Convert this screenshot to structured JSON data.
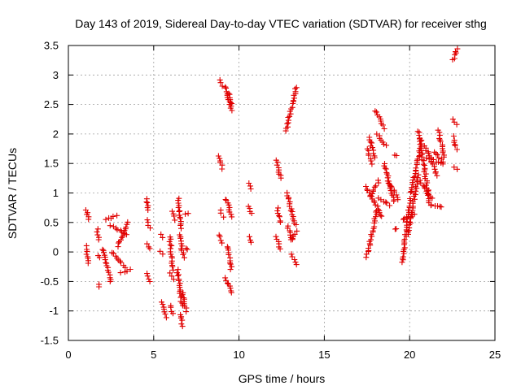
{
  "chart_data": {
    "type": "scatter",
    "title": "Day 143 of 2019, Sidereal Day-to-day VTEC variation (SDTVAR) for receiver sthg",
    "xlabel": "GPS time / hours",
    "ylabel": "SDTVAR / TECUs",
    "xlim": [
      0,
      25
    ],
    "ylim": [
      -1.5,
      3.5
    ],
    "xticks": [
      0,
      5,
      10,
      15,
      20,
      25
    ],
    "yticks": [
      -1.5,
      -1,
      -0.5,
      0,
      0.5,
      1,
      1.5,
      2,
      2.5,
      3,
      3.5
    ],
    "grid": true,
    "marker": "+",
    "color": "#e00000",
    "segments": [
      {
        "x": [
          1.05,
          1.15
        ],
        "y": [
          0.1,
          -0.2
        ]
      },
      {
        "x": [
          1.05,
          1.2
        ],
        "y": [
          0.72,
          0.55
        ]
      },
      {
        "x": [
          1.75,
          1.8
        ],
        "y": [
          -0.58,
          -0.55
        ]
      },
      {
        "x": [
          1.7,
          1.75
        ],
        "y": [
          0.38,
          0.2
        ]
      },
      {
        "x": [
          1.75,
          1.8
        ],
        "y": [
          -0.05,
          -0.1
        ]
      },
      {
        "x": [
          2.0,
          2.5
        ],
        "y": [
          0.05,
          -0.5
        ]
      },
      {
        "x": [
          2.2,
          2.8
        ],
        "y": [
          0.55,
          0.62
        ]
      },
      {
        "x": [
          2.5,
          3.4
        ],
        "y": [
          0.45,
          0.3
        ]
      },
      {
        "x": [
          2.6,
          3.3
        ],
        "y": [
          0.0,
          -0.25
        ]
      },
      {
        "x": [
          2.9,
          3.5
        ],
        "y": [
          0.1,
          0.5
        ]
      },
      {
        "x": [
          3.1,
          3.6
        ],
        "y": [
          -0.35,
          -0.3
        ]
      },
      {
        "x": [
          4.6,
          4.7
        ],
        "y": [
          0.9,
          0.7
        ]
      },
      {
        "x": [
          4.6,
          4.75
        ],
        "y": [
          0.55,
          0.4
        ]
      },
      {
        "x": [
          4.65,
          4.8
        ],
        "y": [
          0.15,
          0.05
        ]
      },
      {
        "x": [
          4.6,
          4.8
        ],
        "y": [
          -0.35,
          -0.5
        ]
      },
      {
        "x": [
          5.4,
          5.5
        ],
        "y": [
          0.3,
          0.25
        ]
      },
      {
        "x": [
          5.4,
          5.5
        ],
        "y": [
          0.0,
          -0.05
        ]
      },
      {
        "x": [
          5.5,
          5.7
        ],
        "y": [
          -0.85,
          -1.1
        ]
      },
      {
        "x": [
          5.95,
          6.1
        ],
        "y": [
          0.25,
          -0.3
        ]
      },
      {
        "x": [
          6.0,
          6.15
        ],
        "y": [
          -0.35,
          -0.45
        ]
      },
      {
        "x": [
          6.0,
          6.1
        ],
        "y": [
          -0.9,
          -1.05
        ]
      },
      {
        "x": [
          6.1,
          6.2
        ],
        "y": [
          0.7,
          0.55
        ]
      },
      {
        "x": [
          6.45,
          6.6
        ],
        "y": [
          0.9,
          0.4
        ]
      },
      {
        "x": [
          6.4,
          6.65
        ],
        "y": [
          -0.3,
          -0.9
        ]
      },
      {
        "x": [
          6.5,
          6.75
        ],
        "y": [
          0.3,
          -0.1
        ]
      },
      {
        "x": [
          6.55,
          6.7
        ],
        "y": [
          -1.05,
          -1.25
        ]
      },
      {
        "x": [
          6.7,
          6.9
        ],
        "y": [
          -0.7,
          -1.0
        ]
      },
      {
        "x": [
          6.9,
          7.0
        ],
        "y": [
          0.65,
          0.65
        ]
      },
      {
        "x": [
          6.95,
          7.0
        ],
        "y": [
          0.05,
          0.05
        ]
      },
      {
        "x": [
          8.85,
          9.05
        ],
        "y": [
          2.92,
          2.82
        ]
      },
      {
        "x": [
          8.85,
          9.0
        ],
        "y": [
          1.62,
          1.42
        ]
      },
      {
        "x": [
          8.9,
          9.05
        ],
        "y": [
          0.7,
          0.6
        ]
      },
      {
        "x": [
          8.85,
          9.0
        ],
        "y": [
          0.3,
          0.15
        ]
      },
      {
        "x": [
          9.2,
          9.55
        ],
        "y": [
          2.8,
          2.4
        ]
      },
      {
        "x": [
          9.35,
          9.6
        ],
        "y": [
          2.7,
          2.5
        ]
      },
      {
        "x": [
          9.25,
          9.55
        ],
        "y": [
          0.9,
          0.6
        ]
      },
      {
        "x": [
          9.3,
          9.55
        ],
        "y": [
          0.1,
          -0.3
        ]
      },
      {
        "x": [
          9.2,
          9.6
        ],
        "y": [
          -0.45,
          -0.7
        ]
      },
      {
        "x": [
          10.6,
          10.7
        ],
        "y": [
          1.18,
          1.08
        ]
      },
      {
        "x": [
          10.6,
          10.7
        ],
        "y": [
          0.78,
          0.65
        ]
      },
      {
        "x": [
          10.6,
          10.7
        ],
        "y": [
          0.25,
          0.15
        ]
      },
      {
        "x": [
          12.2,
          12.45
        ],
        "y": [
          1.55,
          1.25
        ]
      },
      {
        "x": [
          12.25,
          12.4
        ],
        "y": [
          0.75,
          0.5
        ]
      },
      {
        "x": [
          12.2,
          12.4
        ],
        "y": [
          0.25,
          0.05
        ]
      },
      {
        "x": [
          12.75,
          13.35
        ],
        "y": [
          2.05,
          2.8
        ]
      },
      {
        "x": [
          12.8,
          13.3
        ],
        "y": [
          1.0,
          0.45
        ]
      },
      {
        "x": [
          12.85,
          13.1
        ],
        "y": [
          0.45,
          0.2
        ]
      },
      {
        "x": [
          13.0,
          13.35
        ],
        "y": [
          0.2,
          0.35
        ]
      },
      {
        "x": [
          13.1,
          13.35
        ],
        "y": [
          -0.05,
          -0.22
        ]
      },
      {
        "x": [
          17.5,
          17.75
        ],
        "y": [
          1.75,
          1.5
        ]
      },
      {
        "x": [
          17.6,
          18.0
        ],
        "y": [
          1.95,
          1.6
        ]
      },
      {
        "x": [
          17.45,
          18.4
        ],
        "y": [
          1.1,
          0.6
        ]
      },
      {
        "x": [
          17.5,
          18.1
        ],
        "y": [
          -0.08,
          0.7
        ]
      },
      {
        "x": [
          17.7,
          18.2
        ],
        "y": [
          0.95,
          1.2
        ]
      },
      {
        "x": [
          18.0,
          18.5
        ],
        "y": [
          2.4,
          2.1
        ]
      },
      {
        "x": [
          18.1,
          18.6
        ],
        "y": [
          2.0,
          1.8
        ]
      },
      {
        "x": [
          18.2,
          18.8
        ],
        "y": [
          0.9,
          0.8
        ]
      },
      {
        "x": [
          18.5,
          19.1
        ],
        "y": [
          1.5,
          0.85
        ]
      },
      {
        "x": [
          18.8,
          19.3
        ],
        "y": [
          1.2,
          0.9
        ]
      },
      {
        "x": [
          19.1,
          19.2
        ],
        "y": [
          1.65,
          1.62
        ]
      },
      {
        "x": [
          19.15,
          19.2
        ],
        "y": [
          0.38,
          0.38
        ]
      },
      {
        "x": [
          19.55,
          20.05
        ],
        "y": [
          -0.18,
          0.9
        ]
      },
      {
        "x": [
          19.6,
          20.3
        ],
        "y": [
          0.55,
          0.65
        ]
      },
      {
        "x": [
          19.9,
          20.5
        ],
        "y": [
          0.3,
          1.3
        ]
      },
      {
        "x": [
          20.1,
          20.7
        ],
        "y": [
          1.0,
          1.9
        ]
      },
      {
        "x": [
          20.5,
          21.2
        ],
        "y": [
          2.05,
          0.8
        ]
      },
      {
        "x": [
          20.6,
          21.3
        ],
        "y": [
          1.2,
          0.9
        ]
      },
      {
        "x": [
          20.9,
          21.6
        ],
        "y": [
          1.8,
          1.3
        ]
      },
      {
        "x": [
          21.0,
          21.8
        ],
        "y": [
          1.6,
          1.5
        ]
      },
      {
        "x": [
          21.3,
          21.9
        ],
        "y": [
          0.8,
          0.75
        ]
      },
      {
        "x": [
          21.5,
          22.0
        ],
        "y": [
          1.7,
          1.5
        ]
      },
      {
        "x": [
          21.7,
          22.05
        ],
        "y": [
          2.05,
          1.6
        ]
      },
      {
        "x": [
          22.55,
          22.75
        ],
        "y": [
          2.25,
          2.15
        ]
      },
      {
        "x": [
          22.55,
          22.75
        ],
        "y": [
          1.95,
          1.75
        ]
      },
      {
        "x": [
          22.6,
          22.75
        ],
        "y": [
          1.45,
          1.4
        ]
      },
      {
        "x": [
          22.55,
          22.75
        ],
        "y": [
          3.25,
          3.45
        ]
      }
    ]
  }
}
